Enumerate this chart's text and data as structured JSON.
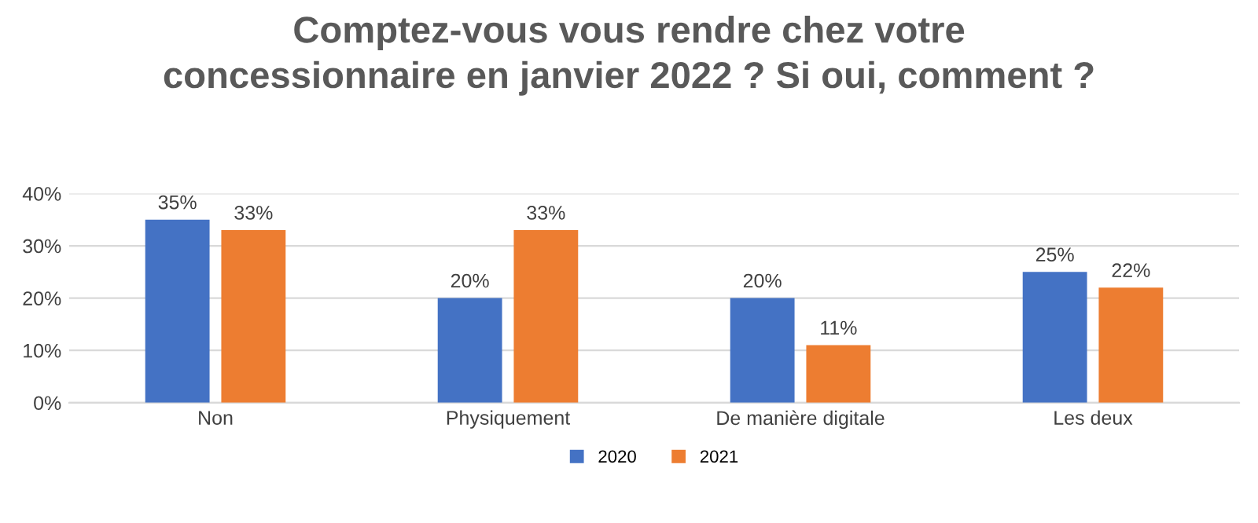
{
  "chart_data": {
    "type": "bar",
    "title": "Comptez-vous vous rendre chez votre\nconcessionnaire en janvier 2022 ? Si oui, comment ?",
    "categories": [
      "Non",
      "Physiquement",
      "De manière digitale",
      "Les deux"
    ],
    "series": [
      {
        "name": "2020",
        "color": "#4472c4",
        "values": [
          35,
          20,
          20,
          25
        ],
        "value_labels": [
          "35%",
          "20%",
          "20%",
          "25%"
        ]
      },
      {
        "name": "2021",
        "color": "#ed7d31",
        "values": [
          33,
          33,
          11,
          22
        ],
        "value_labels": [
          "33%",
          "33%",
          "11%",
          "22%"
        ]
      }
    ],
    "ylim": [
      0,
      40
    ],
    "yticks": [
      {
        "value": 0,
        "label": "0%"
      },
      {
        "value": 10,
        "label": "10%"
      },
      {
        "value": 20,
        "label": "20%"
      },
      {
        "value": 30,
        "label": "30%"
      },
      {
        "value": 40,
        "label": "40%"
      }
    ],
    "grid": "y",
    "legend": "bottom"
  }
}
